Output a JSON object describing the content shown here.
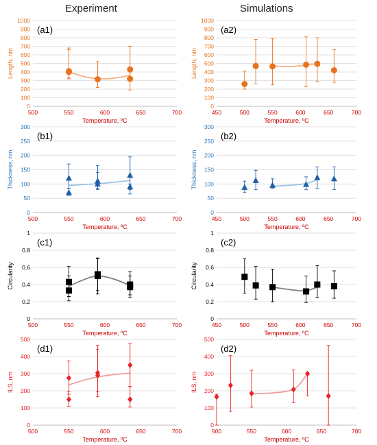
{
  "column_titles": [
    "Experiment",
    "Simulations"
  ],
  "chart_data": [
    {
      "id": "a1",
      "type": "scatter",
      "panel_label": "(a1)",
      "xlabel": "Temperature, ºC",
      "ylabel": "Length, nm",
      "xlim": [
        500,
        700
      ],
      "ylim": [
        0,
        1000
      ],
      "xticks": [
        500,
        550,
        600,
        650,
        700
      ],
      "yticks": [
        0,
        100,
        200,
        300,
        400,
        500,
        600,
        700,
        800,
        900,
        1000
      ],
      "marker": "circle",
      "colors": {
        "marker": "#e8731f",
        "axis_text": "#e8731f",
        "trend": "#f4b183",
        "xtick": "#cc0000"
      },
      "points": [
        {
          "x": 550,
          "y": 410,
          "err_low": 330,
          "err_high": 680
        },
        {
          "x": 550,
          "y": 400,
          "err_low": 320,
          "err_high": 660
        },
        {
          "x": 590,
          "y": 315,
          "err_low": 220,
          "err_high": 520
        },
        {
          "x": 635,
          "y": 430,
          "err_low": 310,
          "err_high": 700
        },
        {
          "x": 635,
          "y": 320,
          "err_low": 190,
          "err_high": 400
        }
      ],
      "trend": [
        [
          550,
          400
        ],
        [
          570,
          345
        ],
        [
          590,
          318
        ],
        [
          610,
          322
        ],
        [
          635,
          360
        ]
      ]
    },
    {
      "id": "a2",
      "type": "scatter",
      "panel_label": "(a2)",
      "xlabel": "Temperature, ºC",
      "ylabel": "Length, nm",
      "xlim": [
        450,
        700
      ],
      "ylim": [
        0,
        1000
      ],
      "xticks": [
        450,
        500,
        550,
        600,
        650,
        700
      ],
      "yticks": [
        0,
        100,
        200,
        300,
        400,
        500,
        600,
        700,
        800,
        900,
        1000
      ],
      "marker": "circle",
      "colors": {
        "marker": "#e8731f",
        "axis_text": "#e8731f",
        "trend": "#f4b183",
        "xtick": "#cc0000"
      },
      "points": [
        {
          "x": 500,
          "y": 260,
          "err_low": 200,
          "err_high": 410
        },
        {
          "x": 520,
          "y": 470,
          "err_low": 260,
          "err_high": 780
        },
        {
          "x": 550,
          "y": 465,
          "err_low": 250,
          "err_high": 790
        },
        {
          "x": 610,
          "y": 485,
          "err_low": 230,
          "err_high": 810
        },
        {
          "x": 630,
          "y": 495,
          "err_low": 290,
          "err_high": 800
        },
        {
          "x": 660,
          "y": 420,
          "err_low": 280,
          "err_high": 660
        }
      ],
      "trend": [
        [
          550,
          470
        ],
        [
          575,
          462
        ],
        [
          600,
          470
        ],
        [
          630,
          498
        ]
      ]
    },
    {
      "id": "b1",
      "type": "scatter",
      "panel_label": "(b1)",
      "xlabel": "Temperature, ºC",
      "ylabel": "Thickness, nm",
      "xlim": [
        500,
        700
      ],
      "ylim": [
        0,
        300
      ],
      "xticks": [
        500,
        550,
        600,
        650,
        700
      ],
      "yticks": [
        0,
        50,
        100,
        150,
        200,
        250,
        300
      ],
      "marker": "triangle",
      "colors": {
        "marker": "#1f5fa8",
        "axis_text": "#2e75b6",
        "trend": "#9dc3e6",
        "xtick": "#cc0000"
      },
      "points": [
        {
          "x": 550,
          "y": 120,
          "err_low": 85,
          "err_high": 170
        },
        {
          "x": 550,
          "y": 70,
          "err_low": 60,
          "err_high": 85
        },
        {
          "x": 590,
          "y": 110,
          "err_low": 85,
          "err_high": 165
        },
        {
          "x": 590,
          "y": 100,
          "err_low": 80,
          "err_high": 140
        },
        {
          "x": 635,
          "y": 130,
          "err_low": 80,
          "err_high": 195
        },
        {
          "x": 635,
          "y": 90,
          "err_low": 65,
          "err_high": 100
        }
      ],
      "trend": [
        [
          550,
          95
        ],
        [
          590,
          100
        ],
        [
          635,
          112
        ]
      ]
    },
    {
      "id": "b2",
      "type": "scatter",
      "panel_label": "(b2)",
      "xlabel": "Temperature, ºC",
      "ylabel": "Thickness, nm",
      "xlim": [
        450,
        700
      ],
      "ylim": [
        0,
        300
      ],
      "xticks": [
        450,
        500,
        550,
        600,
        650,
        700
      ],
      "yticks": [
        0,
        50,
        100,
        150,
        200,
        250,
        300
      ],
      "marker": "triangle",
      "colors": {
        "marker": "#1f5fa8",
        "axis_text": "#2e75b6",
        "trend": "#9dc3e6",
        "xtick": "#cc0000"
      },
      "points": [
        {
          "x": 500,
          "y": 88,
          "err_low": 70,
          "err_high": 110
        },
        {
          "x": 520,
          "y": 112,
          "err_low": 80,
          "err_high": 148
        },
        {
          "x": 550,
          "y": 95,
          "err_low": 85,
          "err_high": 118
        },
        {
          "x": 610,
          "y": 98,
          "err_low": 80,
          "err_high": 125
        },
        {
          "x": 630,
          "y": 122,
          "err_low": 85,
          "err_high": 160
        },
        {
          "x": 660,
          "y": 118,
          "err_low": 80,
          "err_high": 160
        }
      ],
      "trend": [
        [
          550,
          92
        ],
        [
          580,
          95
        ],
        [
          610,
          100
        ],
        [
          630,
          115
        ]
      ]
    },
    {
      "id": "c1",
      "type": "scatter",
      "panel_label": "(c1)",
      "xlabel": "Temperature, ºC",
      "ylabel": "Circularity",
      "xlim": [
        500,
        700
      ],
      "ylim": [
        0,
        1
      ],
      "xticks": [
        500,
        550,
        600,
        650,
        700
      ],
      "yticks": [
        0,
        0.2,
        0.4,
        0.6,
        0.8,
        1
      ],
      "ytick_labels": [
        "0",
        "0.2",
        "0.4",
        "0.6",
        "0.8",
        "1"
      ],
      "marker": "square",
      "colors": {
        "marker": "#000000",
        "axis_text": "#000000",
        "trend": "#7f7f7f",
        "xtick": "#cc0000"
      },
      "points": [
        {
          "x": 550,
          "y": 0.43,
          "err_low": 0.26,
          "err_high": 0.61
        },
        {
          "x": 550,
          "y": 0.33,
          "err_low": 0.21,
          "err_high": 0.5
        },
        {
          "x": 590,
          "y": 0.52,
          "err_low": 0.33,
          "err_high": 0.71
        },
        {
          "x": 590,
          "y": 0.5,
          "err_low": 0.29,
          "err_high": 0.7
        },
        {
          "x": 635,
          "y": 0.4,
          "err_low": 0.28,
          "err_high": 0.55
        },
        {
          "x": 635,
          "y": 0.37,
          "err_low": 0.25,
          "err_high": 0.5
        }
      ],
      "trend": [
        [
          550,
          0.38
        ],
        [
          570,
          0.46
        ],
        [
          590,
          0.51
        ],
        [
          612,
          0.47
        ],
        [
          635,
          0.39
        ]
      ]
    },
    {
      "id": "c2",
      "type": "scatter",
      "panel_label": "(c2)",
      "xlabel": "Temperature, ºC",
      "ylabel": "Circularity",
      "xlim": [
        450,
        700
      ],
      "ylim": [
        0,
        1
      ],
      "xticks": [
        450,
        500,
        550,
        600,
        650,
        700
      ],
      "yticks": [
        0,
        0.2,
        0.4,
        0.6,
        0.8,
        1
      ],
      "ytick_labels": [
        "0",
        "0.2",
        "0.4",
        "0.6",
        "0.8",
        "1"
      ],
      "marker": "square",
      "colors": {
        "marker": "#000000",
        "axis_text": "#000000",
        "trend": "#7f7f7f",
        "xtick": "#cc0000"
      },
      "points": [
        {
          "x": 500,
          "y": 0.49,
          "err_low": 0.3,
          "err_high": 0.7
        },
        {
          "x": 520,
          "y": 0.39,
          "err_low": 0.23,
          "err_high": 0.61
        },
        {
          "x": 550,
          "y": 0.37,
          "err_low": 0.2,
          "err_high": 0.58
        },
        {
          "x": 610,
          "y": 0.32,
          "err_low": 0.19,
          "err_high": 0.5
        },
        {
          "x": 630,
          "y": 0.4,
          "err_low": 0.25,
          "err_high": 0.62
        },
        {
          "x": 660,
          "y": 0.38,
          "err_low": 0.24,
          "err_high": 0.56
        }
      ],
      "trend": [
        [
          550,
          0.37
        ],
        [
          580,
          0.34
        ],
        [
          610,
          0.32
        ],
        [
          630,
          0.37
        ]
      ]
    },
    {
      "id": "d1",
      "type": "scatter",
      "panel_label": "(d1)",
      "xlabel": "Temperature, ºC",
      "ylabel": "ILS, nm",
      "xlim": [
        500,
        700
      ],
      "ylim": [
        0,
        500
      ],
      "xticks": [
        500,
        550,
        600,
        650,
        700
      ],
      "yticks": [
        0,
        100,
        200,
        300,
        400,
        500
      ],
      "marker": "diamond",
      "colors": {
        "marker": "#e8232a",
        "axis_text": "#e8232a",
        "trend": "#f19c9c",
        "xtick": "#cc0000"
      },
      "points": [
        {
          "x": 550,
          "y": 275,
          "err_low": 180,
          "err_high": 375
        },
        {
          "x": 550,
          "y": 150,
          "err_low": 110,
          "err_high": 195
        },
        {
          "x": 590,
          "y": 305,
          "err_low": 195,
          "err_high": 465
        },
        {
          "x": 590,
          "y": 290,
          "err_low": 165,
          "err_high": 440
        },
        {
          "x": 635,
          "y": 350,
          "err_low": 225,
          "err_high": 475
        },
        {
          "x": 635,
          "y": 150,
          "err_low": 105,
          "err_high": 225
        }
      ],
      "trend": [
        [
          550,
          235
        ],
        [
          570,
          262
        ],
        [
          590,
          282
        ],
        [
          612,
          295
        ],
        [
          635,
          303
        ]
      ]
    },
    {
      "id": "d2",
      "type": "scatter",
      "panel_label": "(d2)",
      "xlabel": "Temperature, ºC",
      "ylabel": "ILS, nm",
      "xlim": [
        500,
        700
      ],
      "ylim": [
        0,
        500
      ],
      "xticks": [
        500,
        550,
        600,
        650,
        700
      ],
      "yticks": [
        0,
        100,
        200,
        300,
        400,
        500
      ],
      "marker": "diamond",
      "colors": {
        "marker": "#e8232a",
        "axis_text": "#e8232a",
        "trend": "#f19c9c",
        "xtick": "#cc0000"
      },
      "points": [
        {
          "x": 500,
          "y": 165,
          "err_low": 0,
          "err_high": 180
        },
        {
          "x": 520,
          "y": 232,
          "err_low": 80,
          "err_high": 405
        },
        {
          "x": 550,
          "y": 185,
          "err_low": 105,
          "err_high": 320
        },
        {
          "x": 610,
          "y": 208,
          "err_low": 130,
          "err_high": 322
        },
        {
          "x": 630,
          "y": 300,
          "err_low": 170,
          "err_high": 305
        },
        {
          "x": 660,
          "y": 170,
          "err_low": 0,
          "err_high": 465
        }
      ],
      "trend": [
        [
          550,
          182
        ],
        [
          575,
          185
        ],
        [
          600,
          195
        ],
        [
          615,
          215
        ],
        [
          630,
          300
        ]
      ]
    }
  ]
}
